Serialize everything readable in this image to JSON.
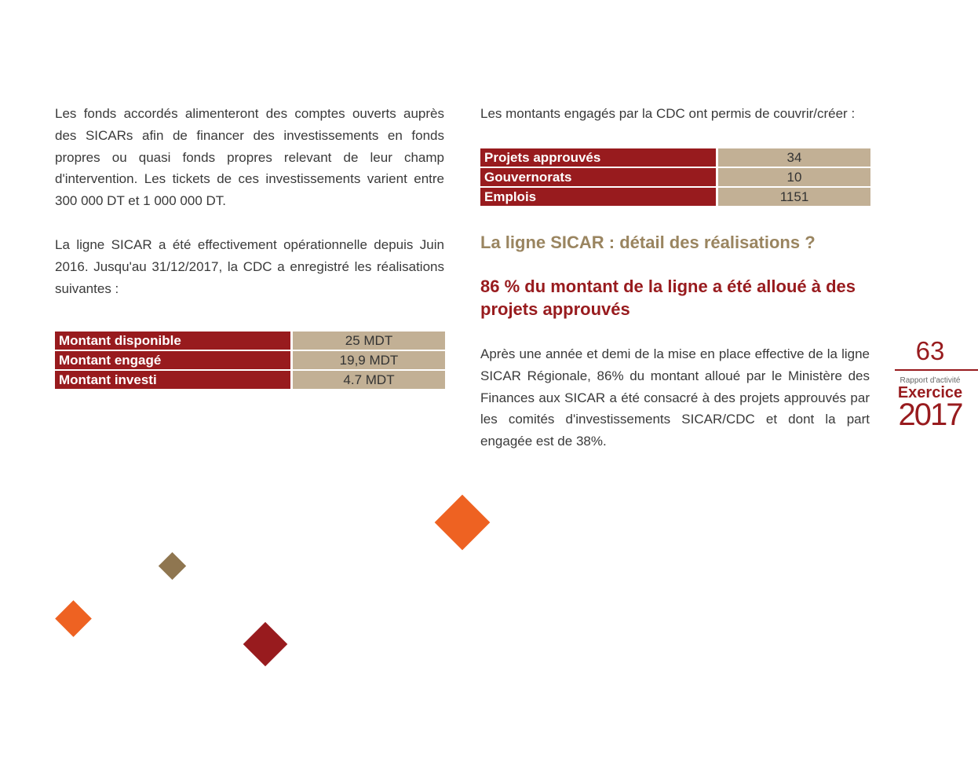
{
  "left": {
    "para1": "Les fonds accordés alimenteront des comptes ouverts auprès des SICARs afin de financer des investissements en fonds propres ou quasi fonds propres relevant de leur champ d'intervention. Les tickets de ces investissements varient entre 300 000 DT et 1 000 000 DT.",
    "para2": "La ligne SICAR a été effectivement opérationnelle depuis Juin 2016. Jusqu'au 31/12/2017, la CDC a enregistré les réalisations suivantes :",
    "table": [
      {
        "label": "Montant disponible",
        "value": "25 MDT"
      },
      {
        "label": "Montant engagé",
        "value": "19,9 MDT"
      },
      {
        "label": "Montant investi",
        "value": "4.7 MDT"
      }
    ]
  },
  "right": {
    "intro": "Les montants engagés par la CDC ont permis de couvrir/créer :",
    "table": [
      {
        "label": "Projets approuvés",
        "value": "34"
      },
      {
        "label": "Gouvernorats",
        "value": "10"
      },
      {
        "label": "Emplois",
        "value": "1151"
      }
    ],
    "heading1": "La ligne SICAR : détail des réalisations ?",
    "heading2": "86 % du montant de la ligne a été alloué à des projets approuvés",
    "para": "Après une année et demi de la mise en place effective de la ligne SICAR Régionale, 86% du montant alloué par le Ministère des Finances aux SICAR a été consacré à des projets approuvés par les comités d'investissements SICAR/CDC et dont la part engagée est de 38%."
  },
  "sidebar": {
    "page_number": "63",
    "report_label": "Rapport d'activité",
    "exercise_label": "Exercice",
    "year": "2017"
  },
  "colors": {
    "brand_red": "#981b1e",
    "tan": "#c2b095",
    "gold": "#9a8560",
    "orange": "#ee6222",
    "brown": "#8f7650"
  }
}
